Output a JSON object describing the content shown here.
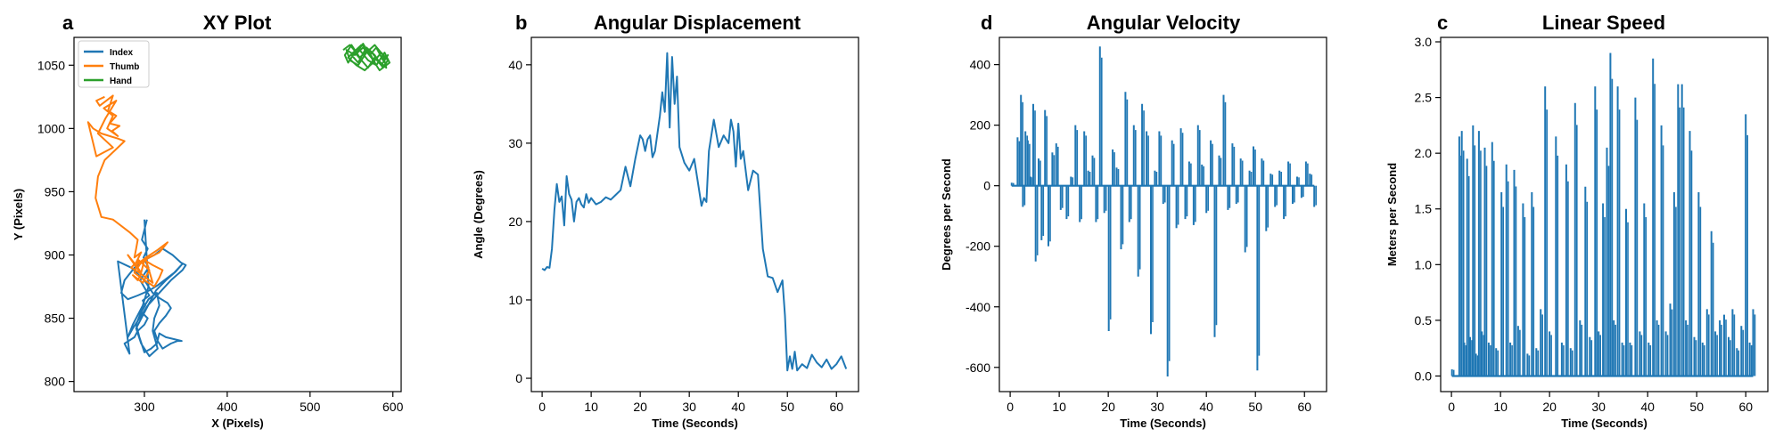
{
  "chart_data": [
    {
      "id": "xy",
      "panel_label": "a",
      "type": "line",
      "title": "XY Plot",
      "xlabel": "X (Pixels)",
      "ylabel": "Y (Pixels)",
      "xlim": [
        215,
        610
      ],
      "ylim": [
        792,
        1072
      ],
      "xticks": [
        300,
        400,
        500,
        600
      ],
      "yticks": [
        800,
        850,
        900,
        950,
        1000,
        1050
      ],
      "grid": false,
      "legend_position": "top-left",
      "series": [
        {
          "name": "Index",
          "color": "#1f77b4",
          "x": [
            303,
            300,
            297,
            304,
            299,
            305,
            295,
            302,
            306,
            298,
            301,
            296,
            304,
            300,
            292,
            288,
            276,
            282,
            268,
            284,
            292,
            300,
            305,
            310,
            318,
            328,
            332,
            326,
            318,
            312,
            316,
            322,
            332,
            340,
            345,
            326,
            318,
            315,
            308,
            300,
            294,
            290,
            296,
            305,
            315,
            318,
            312,
            310,
            316,
            306,
            296,
            290,
            298,
            306,
            314,
            326,
            338,
            346,
            336,
            324,
            316,
            306,
            292,
            280,
            272,
            276,
            288,
            300,
            312,
            322,
            334,
            344,
            350,
            346,
            332,
            318,
            304,
            294,
            286,
            280,
            286,
            298,
            305,
            300
          ],
          "y": [
            928,
            920,
            912,
            905,
            898,
            890,
            880,
            872,
            868,
            864,
            860,
            855,
            850,
            845,
            840,
            835,
            830,
            822,
            895,
            890,
            885,
            880,
            875,
            870,
            866,
            862,
            858,
            852,
            846,
            840,
            832,
            826,
            830,
            832,
            832,
            835,
            838,
            830,
            826,
            823,
            835,
            845,
            855,
            865,
            870,
            860,
            850,
            840,
            826,
            820,
            830,
            842,
            852,
            862,
            872,
            880,
            887,
            893,
            886,
            880,
            876,
            872,
            868,
            865,
            870,
            880,
            890,
            896,
            900,
            905,
            900,
            894,
            892,
            888,
            880,
            870,
            860,
            850,
            842,
            835,
            845,
            860,
            875,
            928
          ]
        },
        {
          "name": "Thumb",
          "color": "#ff7f0e",
          "x": [
            252,
            242,
            246,
            262,
            256,
            266,
            258,
            270,
            261,
            268,
            255,
            262,
            251,
            266,
            253,
            244,
            262,
            242,
            232,
            238,
            248,
            268,
            276,
            252,
            244,
            241,
            248,
            262,
            282,
            292,
            290,
            288,
            296,
            290,
            284,
            296,
            292,
            286,
            298,
            306,
            293,
            288,
            300,
            312,
            318,
            322,
            310,
            300,
            296,
            290,
            302,
            316,
            328,
            318,
            306,
            296,
            292,
            286,
            280,
            296,
            310,
            302
          ],
          "y": [
            1025,
            1022,
            1018,
            1026,
            1014,
            1010,
            1004,
            1002,
            998,
            994,
            1000,
            1010,
            1016,
            1022,
            1008,
            996,
            985,
            978,
            1005,
            1000,
            996,
            992,
            990,
            975,
            962,
            945,
            930,
            928,
            918,
            912,
            905,
            898,
            902,
            894,
            890,
            885,
            880,
            884,
            878,
            888,
            896,
            886,
            880,
            875,
            882,
            888,
            892,
            896,
            886,
            892,
            898,
            904,
            910,
            902,
            898,
            894,
            890,
            895,
            900,
            885,
            878,
            896
          ]
        },
        {
          "name": "Hand",
          "color": "#2ca02c",
          "x": [
            540,
            548,
            556,
            564,
            572,
            580,
            588,
            594,
            586,
            578,
            570,
            562,
            554,
            546,
            542,
            550,
            560,
            570,
            580,
            590,
            596,
            584,
            574,
            564,
            554,
            544,
            548,
            558,
            568,
            578,
            588,
            592,
            582,
            572,
            562,
            552,
            546,
            556,
            566,
            576,
            586,
            594,
            588,
            578,
            568,
            558,
            550,
            560,
            570,
            580
          ],
          "y": [
            1062,
            1066,
            1060,
            1067,
            1058,
            1064,
            1054,
            1058,
            1050,
            1056,
            1048,
            1054,
            1060,
            1052,
            1058,
            1066,
            1056,
            1062,
            1050,
            1060,
            1052,
            1046,
            1056,
            1064,
            1058,
            1062,
            1054,
            1050,
            1060,
            1066,
            1058,
            1048,
            1054,
            1062,
            1066,
            1060,
            1056,
            1050,
            1046,
            1052,
            1060,
            1054,
            1048,
            1058,
            1064,
            1052,
            1058,
            1062,
            1054,
            1050
          ]
        }
      ]
    },
    {
      "id": "angdisp",
      "panel_label": "b",
      "type": "line",
      "title": "Angular Displacement",
      "xlabel": "Time (Seconds)",
      "ylabel": "Angle (Degrees)",
      "xlim": [
        -2.2,
        64.5
      ],
      "ylim": [
        -1.7,
        43.5
      ],
      "xticks": [
        0,
        10,
        20,
        30,
        40,
        50,
        60
      ],
      "yticks": [
        0,
        10,
        20,
        30,
        40
      ],
      "grid": false,
      "series": [
        {
          "color": "#1f77b4",
          "x": [
            0,
            0.5,
            1,
            1.5,
            2,
            2.5,
            3,
            3.5,
            4,
            4.5,
            5,
            5.5,
            6,
            6.5,
            7,
            7.5,
            8,
            8.5,
            9,
            9.5,
            10,
            11,
            12,
            13,
            14,
            15,
            16,
            17,
            18,
            19,
            20,
            20.5,
            21,
            21.5,
            22,
            22.5,
            23,
            24,
            24.5,
            25,
            25.5,
            26,
            26.5,
            27,
            27.5,
            28,
            29,
            30,
            31,
            32,
            32.5,
            33,
            33.5,
            34,
            35,
            36,
            37,
            38,
            38.5,
            39,
            39.5,
            40,
            40.5,
            41,
            42,
            43,
            44,
            45,
            46,
            47,
            48,
            49,
            49.5,
            50,
            50.5,
            51,
            51.5,
            52,
            53,
            54,
            55,
            56,
            57,
            58,
            59,
            60,
            61,
            62
          ],
          "y": [
            14,
            13.8,
            14.2,
            14.1,
            16.5,
            21.5,
            24.8,
            22.5,
            23.2,
            19.5,
            25.8,
            23.5,
            22.8,
            20,
            22.5,
            23,
            22.2,
            21.8,
            23.5,
            22.4,
            23,
            22.2,
            22.5,
            23.1,
            22.8,
            23.4,
            24,
            27,
            24.5,
            28,
            31,
            30.5,
            29,
            30.5,
            31,
            28.2,
            29,
            33.5,
            36.5,
            34,
            41.5,
            32,
            41,
            35,
            38.5,
            29.5,
            27.5,
            26.5,
            28,
            24,
            22,
            23,
            22.5,
            29,
            33,
            29.5,
            31,
            30,
            33,
            31.5,
            27,
            32.5,
            28,
            29,
            24,
            26.5,
            26,
            16.5,
            13,
            12.8,
            11,
            12.5,
            8,
            1,
            2.8,
            1.2,
            3.4,
            1,
            1.8,
            1.3,
            3,
            2,
            1.4,
            2.4,
            1.2,
            1.8,
            2.8,
            1.2
          ]
        }
      ]
    },
    {
      "id": "angvel",
      "panel_label": "d",
      "type": "line",
      "title": "Angular Velocity",
      "xlabel": "Time (Seconds)",
      "ylabel": "Degrees per Second",
      "xlim": [
        -2.2,
        64.5
      ],
      "ylim": [
        -680,
        490
      ],
      "xticks": [
        0,
        10,
        20,
        30,
        40,
        50,
        60
      ],
      "yticks": [
        -600,
        -400,
        -200,
        0,
        200,
        400
      ],
      "grid": false,
      "baseline": 0,
      "spikes": {
        "t": [
          0.3,
          1.5,
          2.2,
          2.6,
          3.1,
          3.6,
          4.2,
          4.7,
          5.2,
          5.8,
          6.4,
          7.1,
          7.8,
          8.6,
          9.4,
          10.3,
          11.5,
          12.4,
          13.3,
          14.2,
          15.1,
          15.9,
          16.8,
          17.5,
          18.3,
          19.2,
          20.1,
          20.9,
          21.7,
          22.6,
          23.5,
          24.3,
          25.2,
          26.1,
          26.9,
          27.8,
          28.7,
          29.5,
          30.4,
          31.2,
          32.1,
          33.0,
          33.9,
          34.8,
          35.7,
          36.5,
          37.4,
          38.3,
          39.1,
          40.0,
          40.9,
          41.7,
          42.6,
          43.5,
          44.4,
          45.3,
          46.1,
          47.0,
          47.9,
          48.8,
          49.6,
          50.4,
          51.3,
          52.2,
          53.1,
          54.0,
          54.9,
          55.8,
          56.7,
          57.6,
          58.5,
          59.4,
          60.3,
          61.1,
          62.0
        ],
        "v": [
          10,
          160,
          300,
          -70,
          180,
          150,
          30,
          270,
          -250,
          90,
          -180,
          250,
          -200,
          110,
          140,
          -80,
          -110,
          30,
          200,
          -120,
          180,
          50,
          100,
          -120,
          460,
          -90,
          -480,
          120,
          60,
          -210,
          310,
          -120,
          200,
          -300,
          270,
          180,
          -490,
          50,
          180,
          -60,
          -630,
          150,
          -140,
          190,
          -110,
          80,
          -130,
          200,
          70,
          -90,
          150,
          -500,
          100,
          300,
          -80,
          140,
          -60,
          90,
          -220,
          50,
          130,
          -610,
          90,
          -150,
          40,
          -70,
          50,
          -110,
          80,
          -60,
          30,
          -40,
          80,
          40,
          -70
        ]
      }
    },
    {
      "id": "linspeed",
      "panel_label": "c",
      "type": "line",
      "title": "Linear Speed",
      "xlabel": "Time (Seconds)",
      "ylabel": "Meters per Second",
      "xlim": [
        -2.2,
        64.5
      ],
      "ylim": [
        -0.14,
        3.04
      ],
      "xticks": [
        0,
        10,
        20,
        30,
        40,
        50,
        60
      ],
      "yticks": [
        0.0,
        0.5,
        1.0,
        1.5,
        2.0,
        2.5,
        3.0
      ],
      "grid": false,
      "baseline": 0,
      "spikes": {
        "t": [
          0.1,
          1.6,
          2.1,
          2.6,
          3.2,
          3.8,
          4.4,
          5.0,
          5.6,
          6.2,
          6.8,
          7.6,
          8.3,
          9.1,
          10.2,
          11.2,
          12.0,
          12.8,
          13.6,
          14.6,
          15.5,
          16.4,
          17.3,
          18.2,
          19.1,
          20.0,
          21.3,
          22.5,
          23.4,
          24.3,
          25.2,
          26.2,
          27.3,
          28.2,
          29.3,
          30.0,
          30.9,
          31.7,
          32.4,
          33.1,
          33.9,
          34.8,
          35.6,
          36.4,
          37.5,
          38.4,
          39.3,
          40.2,
          41.1,
          41.9,
          42.8,
          43.7,
          44.6,
          45.4,
          46.2,
          47.0,
          47.8,
          48.6,
          49.5,
          50.4,
          51.2,
          52.1,
          53.0,
          53.8,
          54.7,
          55.6,
          56.5,
          57.3,
          58.2,
          59.1,
          60.0,
          60.8,
          61.5
        ],
        "v": [
          0.06,
          2.15,
          2.2,
          0.3,
          1.95,
          0.35,
          2.25,
          0.2,
          2.2,
          0.4,
          2.05,
          0.3,
          2.1,
          0.25,
          1.65,
          1.9,
          0.3,
          1.85,
          0.45,
          1.55,
          0.2,
          1.65,
          0.25,
          0.6,
          2.6,
          0.4,
          2.15,
          0.3,
          1.9,
          0.25,
          2.45,
          0.5,
          1.7,
          0.35,
          2.6,
          0.4,
          1.55,
          2.05,
          2.9,
          0.5,
          2.6,
          0.3,
          1.5,
          0.3,
          2.5,
          0.4,
          1.55,
          0.3,
          2.85,
          0.5,
          2.25,
          0.4,
          0.65,
          1.65,
          2.62,
          2.62,
          0.5,
          2.2,
          0.35,
          1.65,
          0.3,
          0.6,
          1.3,
          0.4,
          0.5,
          0.55,
          0.35,
          0.6,
          0.25,
          0.45,
          2.35,
          0.3,
          0.6
        ]
      }
    }
  ]
}
